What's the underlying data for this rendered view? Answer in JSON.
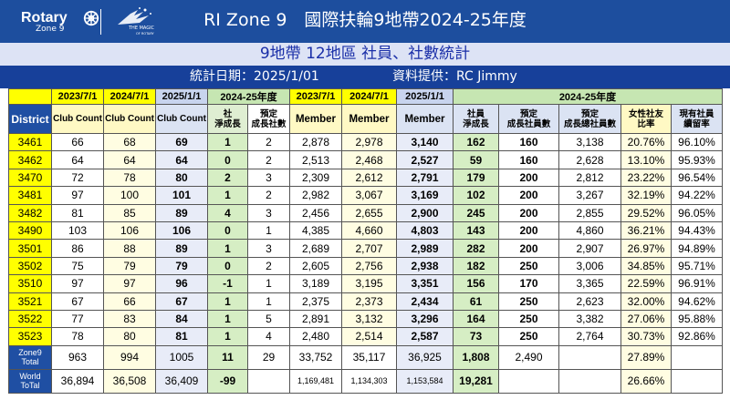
{
  "header": {
    "logo_word": "Rotary",
    "logo_zone": "Zone 9",
    "magic_line1": "THE MAGIC",
    "magic_line2": "OF ROTARY",
    "title": "RI Zone 9　國際扶輪9地帶2024-25年度"
  },
  "subtitle": "9地帶 12地區 社員、社數統計",
  "info": {
    "date_text": "統計日期：2025/1/01",
    "provider_text": "資料提供：RC Jimmy"
  },
  "colors": {
    "header_blue": "#1d4e9e",
    "district_yellow": "#ffff00",
    "red_value": "#e00000",
    "plan_blue": "#1a2d9b",
    "net_green": "#d6eec4"
  },
  "table": {
    "group_headers": [
      "2023/7/1",
      "2024/7/1",
      "2025/1/1",
      "2024-25年度",
      "2023/7/1",
      "2024/7/1",
      "2025/1/1",
      "2024-25年度"
    ],
    "column_headers": {
      "district": "District",
      "club_count_23": "Club Count",
      "club_count_24": "Club Count",
      "club_count_25": "Club Count",
      "club_net": "社\n淨成長",
      "club_plan": "預定\n成長社數",
      "member_23": "Member",
      "member_24": "Member",
      "member_25": "Member",
      "member_net": "社員\n淨成長",
      "member_plan": "預定\n成長社員數",
      "member_total_plan": "預定\n成長總社員數",
      "female_ratio": "女性社友\n比率",
      "retention": "現有社員\n續留率"
    },
    "rows": [
      {
        "district": "3461",
        "c23": "66",
        "c24": "68",
        "c25": "69",
        "cnet": "1",
        "cplan": "2",
        "m23": "2,878",
        "m24": "2,978",
        "m25": "3,140",
        "mnet": "162",
        "mplan": "160",
        "mtotal": "3,138",
        "female": "20.76%",
        "retention": "96.10%"
      },
      {
        "district": "3462",
        "c23": "64",
        "c24": "64",
        "c25": "64",
        "cnet": "0",
        "cplan": "2",
        "m23": "2,513",
        "m24": "2,468",
        "m25": "2,527",
        "mnet": "59",
        "mplan": "160",
        "mtotal": "2,628",
        "female": "13.10%",
        "retention": "95.93%"
      },
      {
        "district": "3470",
        "c23": "72",
        "c24": "78",
        "c25": "80",
        "cnet": "2",
        "cplan": "3",
        "m23": "2,309",
        "m24": "2,612",
        "m25": "2,791",
        "mnet": "179",
        "mplan": "200",
        "mtotal": "2,812",
        "female": "23.22%",
        "retention": "96.54%"
      },
      {
        "district": "3481",
        "c23": "97",
        "c24": "100",
        "c25": "101",
        "cnet": "1",
        "cplan": "2",
        "m23": "2,982",
        "m24": "3,067",
        "m25": "3,169",
        "mnet": "102",
        "mplan": "200",
        "mtotal": "3,267",
        "female": "32.19%",
        "retention": "94.22%"
      },
      {
        "district": "3482",
        "c23": "81",
        "c24": "85",
        "c25": "89",
        "cnet": "4",
        "cplan": "3",
        "m23": "2,456",
        "m24": "2,655",
        "m25": "2,900",
        "mnet": "245",
        "mplan": "200",
        "mtotal": "2,855",
        "female": "29.52%",
        "retention": "96.05%"
      },
      {
        "district": "3490",
        "c23": "103",
        "c24": "106",
        "c25": "106",
        "cnet": "0",
        "cplan": "1",
        "m23": "4,385",
        "m24": "4,660",
        "m25": "4,803",
        "mnet": "143",
        "mplan": "200",
        "mtotal": "4,860",
        "female": "36.21%",
        "retention": "94.43%"
      },
      {
        "district": "3501",
        "c23": "86",
        "c24": "88",
        "c25": "89",
        "cnet": "1",
        "cplan": "3",
        "m23": "2,689",
        "m24": "2,707",
        "m25": "2,989",
        "mnet": "282",
        "mplan": "200",
        "mtotal": "2,907",
        "female": "26.97%",
        "retention": "94.89%"
      },
      {
        "district": "3502",
        "c23": "75",
        "c24": "79",
        "c25": "79",
        "cnet": "0",
        "cplan": "2",
        "m23": "2,605",
        "m24": "2,756",
        "m25": "2,938",
        "mnet": "182",
        "mplan": "250",
        "mtotal": "3,006",
        "female": "34.85%",
        "retention": "95.71%"
      },
      {
        "district": "3510",
        "c23": "97",
        "c24": "97",
        "c25": "96",
        "cnet": "-1",
        "cplan": "1",
        "m23": "3,189",
        "m24": "3,195",
        "m25": "3,351",
        "mnet": "156",
        "mplan": "170",
        "mtotal": "3,365",
        "female": "22.59%",
        "retention": "96.91%"
      },
      {
        "district": "3521",
        "c23": "67",
        "c24": "66",
        "c25": "67",
        "cnet": "1",
        "cplan": "1",
        "m23": "2,375",
        "m24": "2,373",
        "m25": "2,434",
        "mnet": "61",
        "mplan": "250",
        "mtotal": "2,623",
        "female": "32.00%",
        "retention": "94.62%"
      },
      {
        "district": "3522",
        "c23": "77",
        "c24": "83",
        "c25": "84",
        "cnet": "1",
        "cplan": "5",
        "m23": "2,891",
        "m24": "3,132",
        "m25": "3,296",
        "mnet": "164",
        "mplan": "250",
        "mtotal": "3,382",
        "female": "27.06%",
        "retention": "95.88%"
      },
      {
        "district": "3523",
        "c23": "78",
        "c24": "80",
        "c25": "81",
        "cnet": "1",
        "cplan": "4",
        "m23": "2,480",
        "m24": "2,514",
        "m25": "2,587",
        "mnet": "73",
        "mplan": "250",
        "mtotal": "2,764",
        "female": "30.73%",
        "retention": "92.86%"
      }
    ],
    "zone_total": {
      "label": "Zone9\nTotal",
      "c23": "963",
      "c24": "994",
      "c25": "1005",
      "cnet": "11",
      "cplan": "29",
      "m23": "33,752",
      "m24": "35,117",
      "m25": "36,925",
      "mnet": "1,808",
      "mplan": "2,490",
      "mtotal": "",
      "female": "27.89%",
      "retention": ""
    },
    "world_total": {
      "label": "World\nToTal",
      "c23": "36,894",
      "c24": "36,508",
      "c25": "36,409",
      "cnet": "-99",
      "cplan": "",
      "m23": "1,169,481",
      "m24": "1,134,303",
      "m25": "1,153,584",
      "mnet": "19,281",
      "mplan": "",
      "mtotal": "",
      "female": "26.66%",
      "retention": ""
    }
  }
}
